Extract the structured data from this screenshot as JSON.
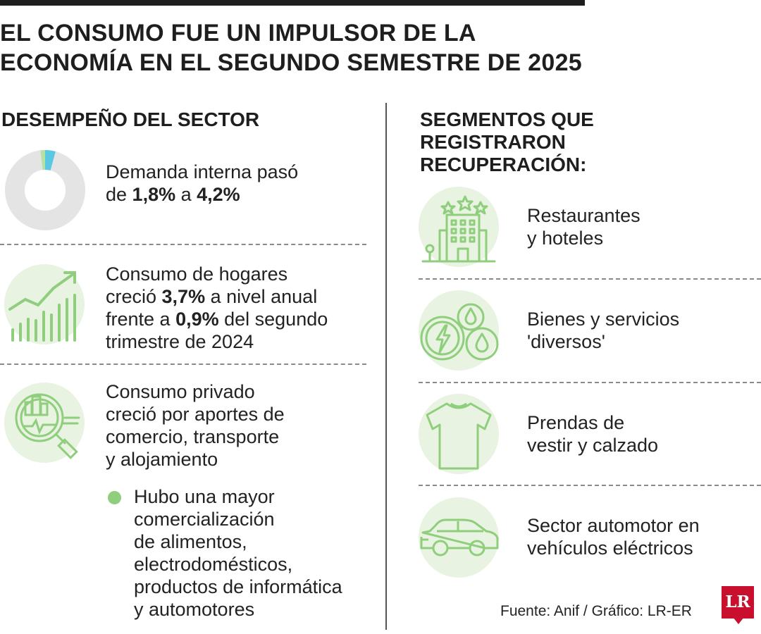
{
  "title": {
    "line1": "EL CONSUMO FUE UN IMPULSOR DE LA",
    "line2": "ECONOMÍA EN EL SEGUNDO SEMESTRE DE 2025"
  },
  "left": {
    "heading": "DESEMPEÑO DEL SECTOR",
    "demanda": {
      "icon": "donut-chart-icon",
      "t1": "Demanda interna pasó",
      "t2": "de ",
      "v1": "1,8%",
      "t3": " a ",
      "v2": "4,2%",
      "donut_share_percent": 4.2
    },
    "hogares": {
      "icon": "rising-bar-chart-icon",
      "t1": "Consumo de hogares",
      "t2": "creció ",
      "v1": "3,7%",
      "t3": " a nivel anual",
      "t4": "frente a ",
      "v2": "0,9%",
      "t5": " del segundo",
      "t6": "trimestre de 2024"
    },
    "privado": {
      "icon": "magnifier-analysis-icon",
      "lines": [
        "Consumo privado",
        "creció por aportes de",
        "comercio, transporte",
        "y alojamiento"
      ]
    },
    "bullet": {
      "lines": [
        "Hubo una mayor",
        "comercialización",
        "de alimentos,",
        "electrodomésticos,",
        "productos de informática",
        "y automotores"
      ]
    }
  },
  "right": {
    "heading_lines": [
      "SEGMENTOS QUE",
      "REGISTRARON",
      "RECUPERACIÓN:"
    ],
    "items": [
      {
        "icon": "hotel-building-icon",
        "lines": [
          "Restaurantes",
          "y hoteles"
        ]
      },
      {
        "icon": "energy-water-icon",
        "lines": [
          "Bienes y servicios",
          "'diversos'"
        ]
      },
      {
        "icon": "tshirt-icon",
        "lines": [
          "Prendas de",
          "vestir y calzado"
        ]
      },
      {
        "icon": "car-icon",
        "lines": [
          "Sector automotor en",
          "vehículos eléctricos"
        ]
      }
    ]
  },
  "source": "Fuente: Anif / Gráfico: LR-ER",
  "logo_text": "LR",
  "colors": {
    "accent_green": "#8fce7c",
    "icon_bg": "#e8f3e1",
    "donut_gray": "#e4e4e4",
    "donut_blue": "#5bc8e3",
    "logo_red": "#c8102e"
  }
}
